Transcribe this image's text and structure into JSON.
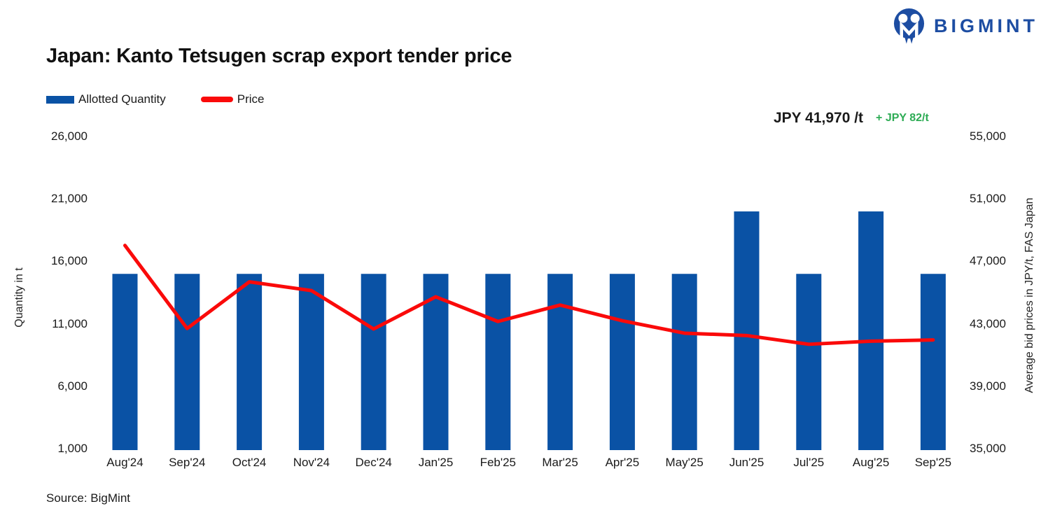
{
  "logo": {
    "text": "BIGMINT",
    "color": "#1D4DA2"
  },
  "title": "Japan: Kanto Tetsugen scrap export tender price",
  "legend": [
    {
      "label": "Allotted Quantity",
      "type": "bar",
      "color": "#0A52A5"
    },
    {
      "label": "Price",
      "type": "line",
      "color": "#FA0A0A"
    }
  ],
  "annotation": {
    "price": "JPY 41,970 /t",
    "change": "+ JPY 82/t",
    "change_color": "#2EAC55"
  },
  "source": "Source: BigMint",
  "chart_data": {
    "type": "combo",
    "categories": [
      "Aug'24",
      "Sep'24",
      "Oct'24",
      "Nov'24",
      "Dec'24",
      "Jan'25",
      "Feb'25",
      "Mar'25",
      "Apr'25",
      "May'25",
      "Jun'25",
      "Jul'25",
      "Aug'25",
      "Sep'25"
    ],
    "series": [
      {
        "name": "Allotted Quantity",
        "type": "bar",
        "axis": "left",
        "color": "#0A52A5",
        "values": [
          15000,
          15000,
          15000,
          15000,
          15000,
          15000,
          15000,
          15000,
          15000,
          15000,
          20000,
          15000,
          20000,
          15000
        ]
      },
      {
        "name": "Price",
        "type": "line",
        "axis": "right",
        "color": "#FA0A0A",
        "values": [
          48020,
          42700,
          45690,
          45130,
          42670,
          44730,
          43150,
          44200,
          43200,
          42400,
          42250,
          41690,
          41888,
          41970
        ]
      }
    ],
    "left_axis": {
      "label": "Quantity in t",
      "min": 1000,
      "max": 26000,
      "ticks": [
        1000,
        6000,
        11000,
        16000,
        21000,
        26000
      ]
    },
    "right_axis": {
      "label": "Average bid prices in JPY/t, FAS Japan",
      "min": 35000,
      "max": 55000,
      "ticks": [
        35000,
        39000,
        43000,
        47000,
        51000,
        55000
      ]
    },
    "grid": false,
    "legend_position": "top-left"
  }
}
